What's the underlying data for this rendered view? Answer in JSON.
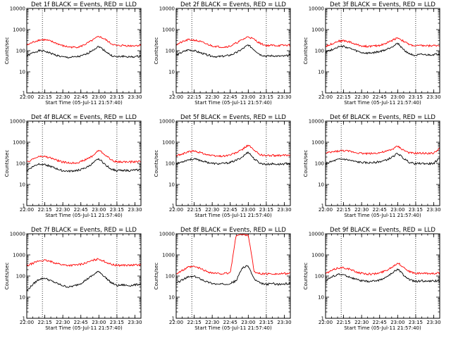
{
  "chart_data": {
    "type": "line",
    "y_scale": "log",
    "ylim": [
      1,
      10000
    ],
    "xlim": [
      "22:00",
      "23:35"
    ],
    "ylabel": "Counts/sec",
    "xlabel": "Start Time (05-Jul-11 21:57:40)",
    "x_tick_labels": [
      "22:00",
      "22:15",
      "22:30",
      "22:45",
      "23:00",
      "23:15",
      "23:30"
    ],
    "y_tick_labels": [
      "1",
      "10",
      "100",
      "1000",
      "10000"
    ],
    "dotted_vlines": [
      "22:13",
      "23:15"
    ],
    "grid": false,
    "times": [
      "22:00",
      "22:05",
      "22:10",
      "22:15",
      "22:20",
      "22:25",
      "22:30",
      "22:35",
      "22:40",
      "22:45",
      "22:50",
      "22:55",
      "23:00",
      "23:05",
      "23:10",
      "23:15",
      "23:20",
      "23:25",
      "23:30",
      "23:35"
    ],
    "panels": [
      {
        "title": "Det 1f BLACK = Events, RED = LLD",
        "series": [
          {
            "color": "#000000",
            "values": [
              55,
              80,
              100,
              95,
              75,
              60,
              50,
              48,
              50,
              55,
              70,
              110,
              160,
              100,
              60,
              50,
              55,
              50,
              52,
              55
            ]
          },
          {
            "color": "#ff0000",
            "values": [
              180,
              250,
              320,
              330,
              280,
              220,
              170,
              150,
              145,
              160,
              220,
              320,
              480,
              350,
              220,
              170,
              180,
              170,
              175,
              180
            ]
          }
        ]
      },
      {
        "title": "Det 2f BLACK = Events, RED = LLD",
        "series": [
          {
            "color": "#000000",
            "values": [
              60,
              85,
              110,
              100,
              80,
              65,
              55,
              52,
              55,
              62,
              80,
              120,
              190,
              110,
              65,
              55,
              58,
              55,
              55,
              60
            ]
          },
          {
            "color": "#ff0000",
            "values": [
              190,
              260,
              330,
              320,
              270,
              210,
              170,
              155,
              150,
              165,
              230,
              330,
              470,
              340,
              220,
              175,
              180,
              175,
              180,
              185
            ]
          }
        ]
      },
      {
        "title": "Det 3f BLACK = Events, RED = LLD",
        "series": [
          {
            "color": "#000000",
            "values": [
              90,
              110,
              150,
              160,
              130,
              100,
              80,
              75,
              80,
              90,
              110,
              150,
              230,
              110,
              70,
              60,
              65,
              62,
              65,
              70
            ]
          },
          {
            "color": "#ff0000",
            "values": [
              160,
              210,
              280,
              300,
              260,
              200,
              170,
              160,
              165,
              180,
              220,
              300,
              420,
              280,
              190,
              170,
              175,
              170,
              175,
              180
            ]
          }
        ]
      },
      {
        "title": "Det 4f BLACK = Events, RED = LLD",
        "series": [
          {
            "color": "#000000",
            "values": [
              45,
              70,
              95,
              90,
              70,
              55,
              45,
              42,
              45,
              50,
              65,
              100,
              170,
              90,
              55,
              45,
              48,
              45,
              48,
              50
            ]
          },
          {
            "color": "#ff0000",
            "values": [
              110,
              160,
              210,
              210,
              180,
              140,
              115,
              105,
              105,
              120,
              160,
              230,
              430,
              260,
              150,
              115,
              120,
              115,
              120,
              125
            ]
          }
        ]
      },
      {
        "title": "Det 5f BLACK = Events, RED = LLD",
        "series": [
          {
            "color": "#000000",
            "values": [
              95,
              120,
              150,
              160,
              140,
              115,
              100,
              95,
              100,
              110,
              140,
              200,
              350,
              160,
              100,
              90,
              95,
              90,
              95,
              100
            ]
          },
          {
            "color": "#ff0000",
            "values": [
              230,
              280,
              350,
              380,
              330,
              270,
              230,
              220,
              225,
              250,
              320,
              450,
              750,
              400,
              260,
              230,
              240,
              230,
              240,
              250
            ]
          }
        ]
      },
      {
        "title": "Det 6f BLACK = Events, RED = LLD",
        "series": [
          {
            "color": "#000000",
            "values": [
              100,
              120,
              150,
              160,
              140,
              120,
              110,
              105,
              110,
              120,
              140,
              190,
              300,
              170,
              110,
              95,
              100,
              95,
              100,
              180
            ]
          },
          {
            "color": "#ff0000",
            "values": [
              300,
              340,
              380,
              400,
              370,
              330,
              300,
              290,
              300,
              320,
              360,
              450,
              650,
              420,
              310,
              300,
              300,
              300,
              300,
              520
            ]
          }
        ]
      },
      {
        "title": "Det 7f BLACK = Events, RED = LLD",
        "series": [
          {
            "color": "#000000",
            "values": [
              20,
              40,
              70,
              80,
              60,
              45,
              35,
              30,
              35,
              45,
              70,
              110,
              170,
              90,
              50,
              35,
              38,
              35,
              38,
              42
            ]
          },
          {
            "color": "#ff0000",
            "values": [
              300,
              400,
              520,
              550,
              480,
              400,
              340,
              320,
              330,
              360,
              430,
              550,
              650,
              480,
              360,
              320,
              330,
              320,
              330,
              340
            ]
          }
        ]
      },
      {
        "title": "Det 8f BLACK = Events, RED = LLD",
        "series": [
          {
            "color": "#000000",
            "values": [
              45,
              65,
              90,
              95,
              75,
              55,
              45,
              40,
              42,
              45,
              60,
              250,
              300,
              70,
              45,
              40,
              45,
              40,
              42,
              45
            ]
          },
          {
            "color": "#ff0000",
            "values": [
              130,
              180,
              260,
              280,
              230,
              170,
              140,
              130,
              130,
              140,
              9000,
              9000,
              9000,
              150,
              130,
              125,
              130,
              125,
              130,
              135
            ]
          }
        ]
      },
      {
        "title": "Det 9f BLACK = Events, RED = LLD",
        "series": [
          {
            "color": "#000000",
            "values": [
              60,
              90,
              120,
              115,
              90,
              70,
              60,
              55,
              58,
              65,
              85,
              130,
              220,
              110,
              65,
              55,
              60,
              55,
              58,
              60
            ]
          },
          {
            "color": "#ff0000",
            "values": [
              130,
              180,
              240,
              250,
              210,
              160,
              135,
              125,
              125,
              140,
              180,
              260,
              420,
              260,
              160,
              130,
              135,
              130,
              135,
              140
            ]
          }
        ]
      }
    ]
  }
}
